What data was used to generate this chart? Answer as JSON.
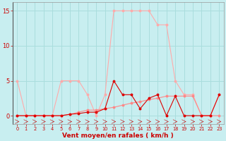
{
  "x": [
    0,
    1,
    2,
    3,
    4,
    5,
    6,
    7,
    8,
    9,
    10,
    11,
    12,
    13,
    14,
    15,
    16,
    17,
    18,
    19,
    20,
    21,
    22,
    23
  ],
  "rafales": [
    5.0,
    0.0,
    0.0,
    0.0,
    0.0,
    5.0,
    5.0,
    5.0,
    3.0,
    0.0,
    3.0,
    15.0,
    15.0,
    15.0,
    15.0,
    15.0,
    13.0,
    13.0,
    5.0,
    3.0,
    3.0,
    0.0,
    0.0,
    3.0
  ],
  "vent_moyen": [
    0.0,
    0.0,
    0.0,
    0.0,
    0.0,
    0.0,
    0.2,
    0.5,
    0.8,
    0.8,
    1.0,
    1.2,
    1.5,
    1.8,
    2.0,
    2.3,
    2.5,
    2.8,
    2.8,
    2.8,
    2.8,
    0.0,
    0.0,
    0.0
  ],
  "vent_inst": [
    0.0,
    0.0,
    0.0,
    0.0,
    0.0,
    0.0,
    0.2,
    0.3,
    0.5,
    0.5,
    1.0,
    5.0,
    3.0,
    3.0,
    1.0,
    2.5,
    3.0,
    0.0,
    2.8,
    0.0,
    0.0,
    0.0,
    0.0,
    3.0
  ],
  "color_rafales": "#ffaaaa",
  "color_moyen": "#ff8888",
  "color_inst": "#dd0000",
  "background": "#c8eef0",
  "grid_color": "#aadddd",
  "tick_color": "#cc0000",
  "xlabel": "Vent moyen/en rafales ( km/h )",
  "yticks": [
    0,
    5,
    10,
    15
  ],
  "xticks": [
    0,
    1,
    2,
    3,
    4,
    5,
    6,
    7,
    8,
    9,
    10,
    11,
    12,
    13,
    14,
    15,
    16,
    17,
    18,
    19,
    20,
    21,
    22,
    23
  ],
  "ylim": [
    -1.2,
    16.2
  ],
  "xlim": [
    -0.5,
    23.5
  ],
  "figsize": [
    3.2,
    2.0
  ],
  "dpi": 100
}
